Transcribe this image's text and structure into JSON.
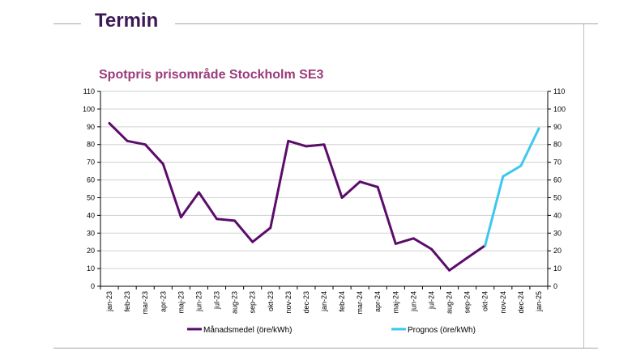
{
  "page": {
    "title": "Termin"
  },
  "colors": {
    "title": "#3d1a54",
    "chart_title": "#9b3a7a",
    "series_actual": "#5c0c6b",
    "series_forecast": "#3cc8ee",
    "grid": "#d0d0d0",
    "axis": "#000000"
  },
  "chart_data": {
    "type": "line",
    "title": "Spotpris prisområde Stockholm SE3",
    "xlabel": "",
    "ylabel": "",
    "ylim": [
      0,
      110
    ],
    "yticks": [
      0,
      10,
      20,
      30,
      40,
      50,
      60,
      70,
      80,
      90,
      100,
      110
    ],
    "secondary_y_axis": true,
    "grid": "horizontal",
    "legend_position": "bottom",
    "categories": [
      "jan-23",
      "feb-23",
      "mar-23",
      "apr-23",
      "maj-23",
      "jun-23",
      "jul-23",
      "aug-23",
      "sep-23",
      "okt-23",
      "nov-23",
      "dec-23",
      "jan-24",
      "feb-24",
      "mar-24",
      "apr-24",
      "maj-24",
      "jun-24",
      "jul-24",
      "aug-24",
      "sep-24",
      "okt-24",
      "nov-24",
      "dec-24",
      "jan-25"
    ],
    "series": [
      {
        "name": "Månadsmedel (öre/kWh)",
        "color": "#5c0c6b",
        "values": [
          92,
          82,
          80,
          69,
          39,
          53,
          38,
          37,
          25,
          33,
          82,
          79,
          80,
          50,
          59,
          56,
          24,
          27,
          21,
          9,
          16,
          23,
          null,
          null,
          null
        ]
      },
      {
        "name": "Prognos (öre/kWh)",
        "color": "#3cc8ee",
        "values": [
          null,
          null,
          null,
          null,
          null,
          null,
          null,
          null,
          null,
          null,
          null,
          null,
          null,
          null,
          null,
          null,
          null,
          null,
          null,
          null,
          null,
          23,
          62,
          68,
          89
        ]
      }
    ]
  }
}
